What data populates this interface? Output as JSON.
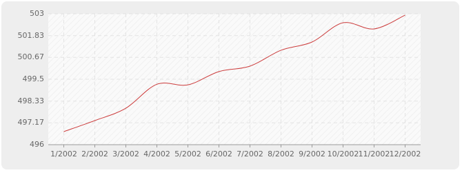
{
  "chart_data": {
    "type": "line",
    "categories": [
      "1/2002",
      "2/2002",
      "3/2002",
      "4/2002",
      "5/2002",
      "6/2002",
      "7/2002",
      "8/2002",
      "9/2002",
      "10/2002",
      "11/2002",
      "12/2002"
    ],
    "series": [
      {
        "color": "#cc3b3b",
        "values": [
          496.7,
          497.29,
          497.95,
          499.23,
          499.2,
          499.91,
          500.2,
          501.05,
          501.49,
          502.52,
          502.19,
          502.93
        ]
      }
    ],
    "ylim": [
      496,
      503
    ],
    "yticks": [
      496,
      497.17,
      498.33,
      499.5,
      500.67,
      501.83,
      503
    ],
    "grid": true
  }
}
